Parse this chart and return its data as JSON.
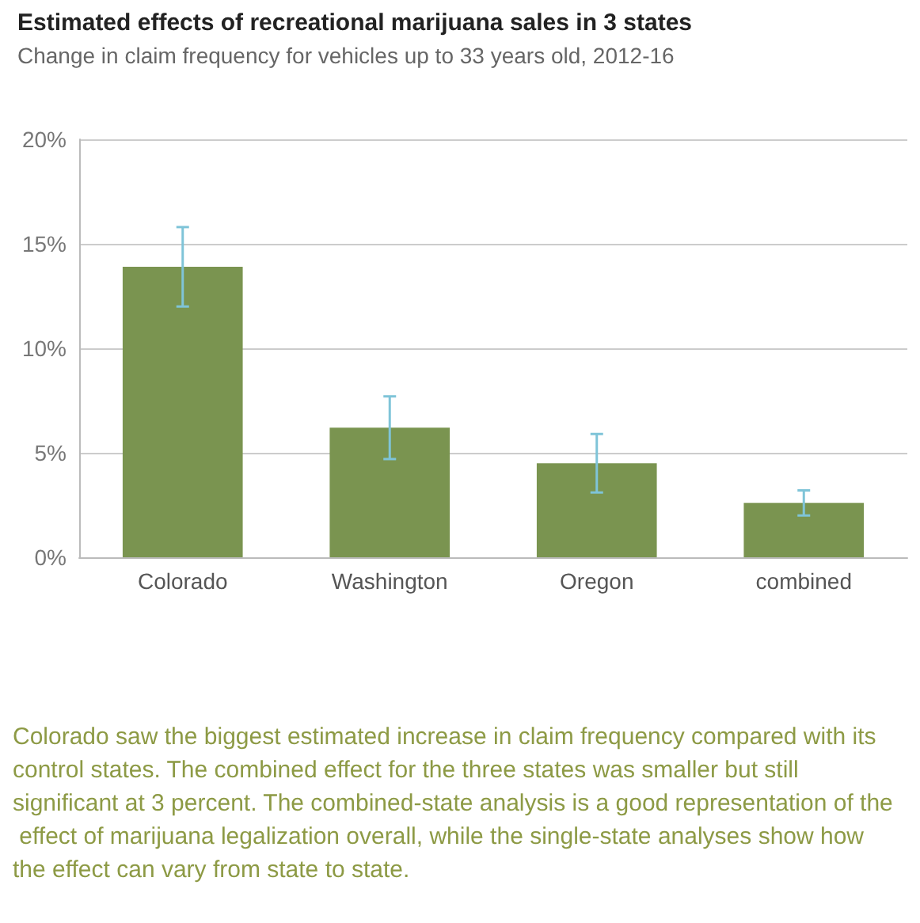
{
  "chart_data": {
    "type": "bar",
    "title": "Estimated effects of recreational marijuana sales in 3 states",
    "subtitle": "Change in claim frequency for vehicles up to 33 years old, 2012-16",
    "categories": [
      "Colorado",
      "Washington",
      "Oregon",
      "combined"
    ],
    "values": [
      13.9,
      6.2,
      4.5,
      2.6
    ],
    "errors": [
      1.9,
      1.5,
      1.4,
      0.6
    ],
    "color": "#7a9450",
    "ylim": [
      0,
      20
    ],
    "yticks": [
      {
        "value": 0,
        "label": "0%"
      },
      {
        "value": 5,
        "label": "5%"
      },
      {
        "value": 10,
        "label": "10%"
      },
      {
        "value": 15,
        "label": "15%"
      },
      {
        "value": 20,
        "label": "20%"
      }
    ],
    "grid": "y",
    "annotations": [
      "Colorado saw the biggest estimated increase in claim frequency compared with its control states. The combined effect for the three states was smaller but still significant at 3 percent. The combined-state analysis is a good representation of the effect of marijuana legalization overall, while the single-state analyses show how the effect can vary from state to state."
    ]
  }
}
